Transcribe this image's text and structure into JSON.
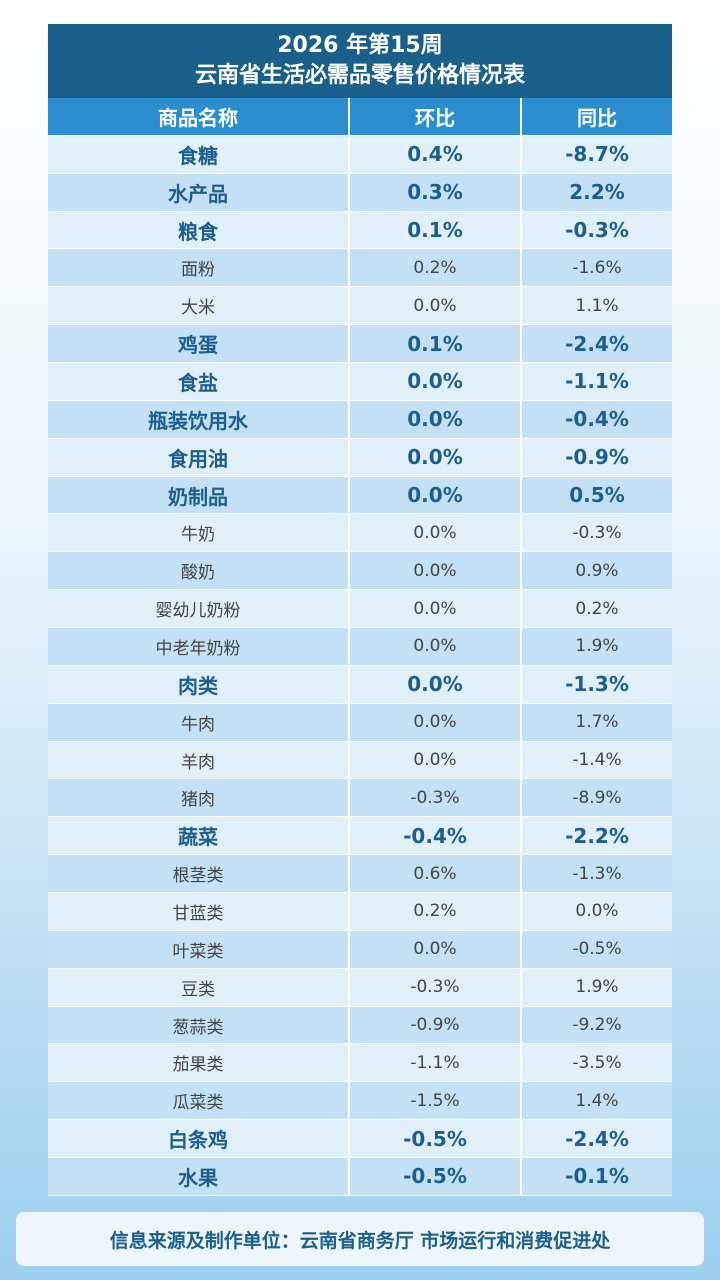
{
  "header": {
    "title": [
      "2026 年第15周",
      "云南省生活必需品零售价格情况表"
    ]
  },
  "table": {
    "columns": [
      "商品名称",
      "环比",
      "同比"
    ],
    "rows": [
      [
        "食糖",
        "0.4%",
        "-8.7%"
      ],
      [
        "水产品",
        "0.3%",
        "2.2%"
      ],
      [
        "粮食",
        "0.1%",
        "-0.3%"
      ],
      [
        "面粉",
        "0.2%",
        "-1.6%"
      ],
      [
        "大米",
        "0.0%",
        "1.1%"
      ],
      [
        "鸡蛋",
        "0.1%",
        "-2.4%"
      ],
      [
        "食盐",
        "0.0%",
        "-1.1%"
      ],
      [
        "瓶装饮用水",
        "0.0%",
        "-0.4%"
      ],
      [
        "食用油",
        "0.0%",
        "-0.9%"
      ],
      [
        "奶制品",
        "0.0%",
        "0.5%"
      ],
      [
        "牛奶",
        "0.0%",
        "-0.3%"
      ],
      [
        "酸奶",
        "0.0%",
        "0.9%"
      ],
      [
        "婴幼儿奶粉",
        "0.0%",
        "0.2%"
      ],
      [
        "中老年奶粉",
        "0.0%",
        "1.9%"
      ],
      [
        "肉类",
        "0.0%",
        "-1.3%"
      ],
      [
        "牛肉",
        "0.0%",
        "1.7%"
      ],
      [
        "羊肉",
        "0.0%",
        "-1.4%"
      ],
      [
        "猪肉",
        "-0.3%",
        "-8.9%"
      ],
      [
        "蔬菜",
        "-0.4%",
        "-2.2%"
      ],
      [
        "根茎类",
        "0.6%",
        "-1.3%"
      ],
      [
        "甘蓝类",
        "0.2%",
        "0.0%"
      ],
      [
        "叶菜类",
        "0.0%",
        "-0.5%"
      ],
      [
        "豆类",
        "-0.3%",
        "1.9%"
      ],
      [
        "葱蒜类",
        "-0.9%",
        "-9.2%"
      ],
      [
        "茄果类",
        "-1.1%",
        "-3.5%"
      ],
      [
        "瓜菜类",
        "-1.5%",
        "1.4%"
      ],
      [
        "白条鸡",
        "-0.5%",
        "-2.4%"
      ],
      [
        "水果",
        "-0.5%",
        "-0.1%"
      ]
    ],
    "bold_rows": [
      0,
      1,
      2,
      5,
      6,
      7,
      8,
      9,
      14,
      18,
      26,
      27
    ]
  },
  "footer": {
    "source": "信息来源及制作单位：云南省商务厅 市场运行和消费促进处"
  }
}
